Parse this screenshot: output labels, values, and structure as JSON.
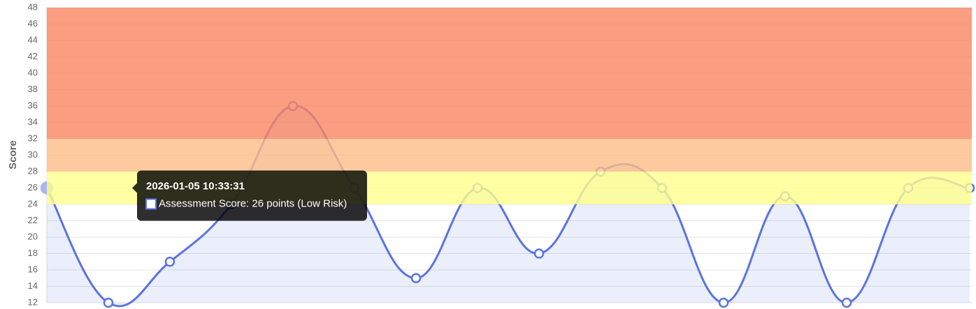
{
  "chart_data": {
    "type": "line",
    "y_label": "Score",
    "categories": [
      null,
      null,
      null,
      null,
      null,
      null,
      null,
      null,
      null,
      null,
      null,
      null,
      null,
      null,
      null,
      null
    ],
    "series": [
      {
        "color": "#5b73e0",
        "values": [
          26,
          12,
          17,
          24,
          36,
          26,
          15,
          26,
          18,
          28,
          26,
          12,
          25,
          12,
          26,
          26
        ]
      }
    ],
    "ylim": [
      12,
      48
    ],
    "yticks": [
      12,
      14,
      16,
      18,
      20,
      22,
      24,
      26,
      28,
      30,
      32,
      34,
      36,
      38,
      40,
      42,
      44,
      46,
      48
    ],
    "grid": true,
    "bands": [
      {
        "from": 24,
        "to": 28,
        "color": "#ffff8c"
      },
      {
        "from": 28,
        "to": 32,
        "color": "#fdbd87"
      },
      {
        "from": 32,
        "to": 48,
        "color": "#f98462"
      }
    ],
    "tooltip": {
      "title": "2026-01-05 10:33:31",
      "body": "Assessment Score: 26 points (Low Risk)"
    }
  }
}
